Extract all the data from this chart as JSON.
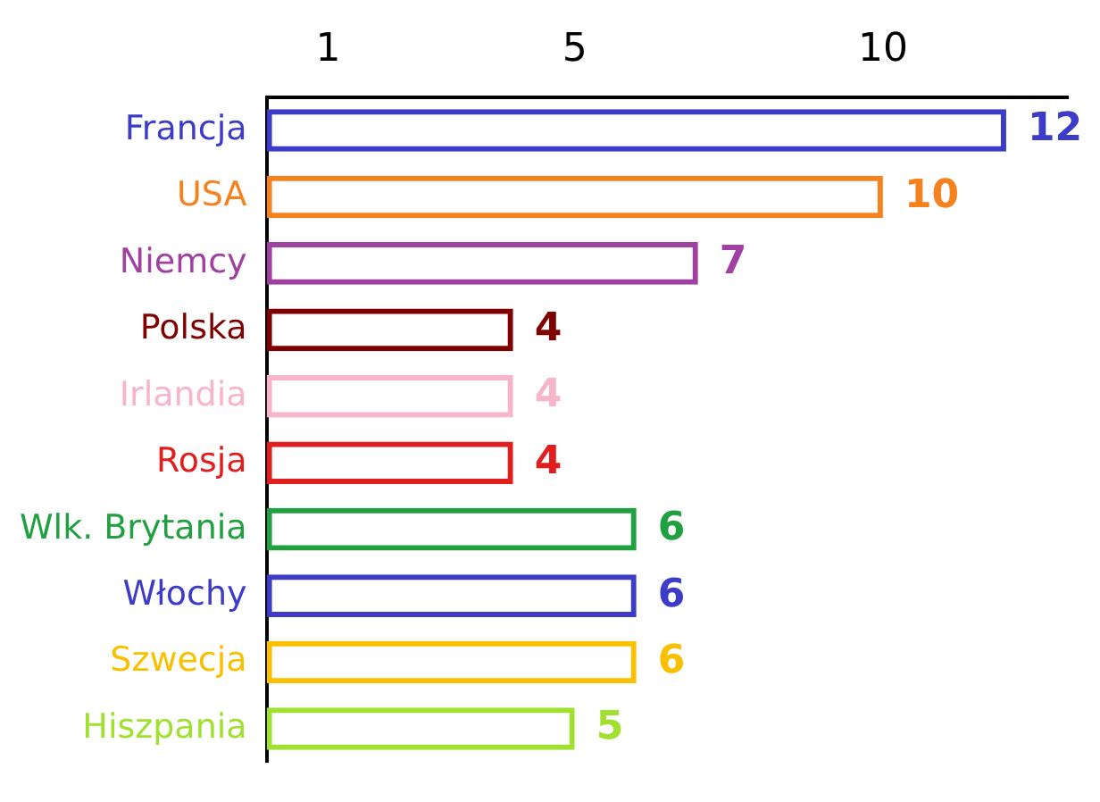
{
  "chart_data": {
    "type": "bar",
    "orientation": "horizontal",
    "categories": [
      "Francja",
      "USA",
      "Niemcy",
      "Polska",
      "Irlandia",
      "Rosja",
      "Wlk. Brytania",
      "Włochy",
      "Szwecja",
      "Hiszpania"
    ],
    "values": [
      12,
      10,
      7,
      4,
      4,
      4,
      6,
      6,
      6,
      5
    ],
    "colors": [
      "#3c3cc8",
      "#f5821e",
      "#a040a0",
      "#800000",
      "#f8b4c8",
      "#e01e1e",
      "#20a040",
      "#3c3cc8",
      "#f8c000",
      "#a0e030"
    ],
    "xlim": [
      0,
      13
    ],
    "xticks": [
      1,
      5,
      10
    ],
    "data_labels": true,
    "grid": false,
    "legend": false
  }
}
